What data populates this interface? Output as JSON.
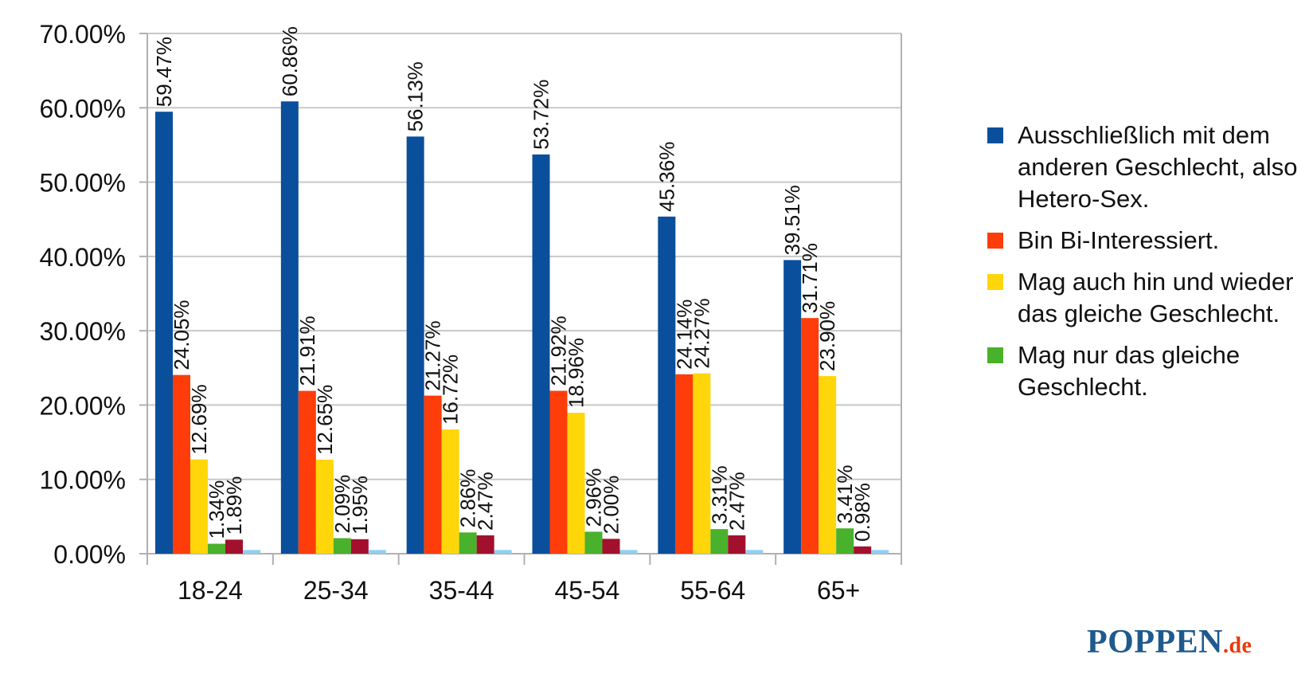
{
  "chart_data": {
    "type": "bar",
    "categories": [
      "18-24",
      "25-34",
      "35-44",
      "45-54",
      "55-64",
      "65+"
    ],
    "ylim": [
      0,
      70
    ],
    "yticks": [
      0,
      10,
      20,
      30,
      40,
      50,
      60,
      70
    ],
    "ytick_labels": [
      "0.00%",
      "10.00%",
      "20.00%",
      "30.00%",
      "40.00%",
      "50.00%",
      "60.00%",
      "70.00%"
    ],
    "grid": true,
    "legend_position": "right",
    "series": [
      {
        "name": "Ausschließlich mit dem anderen Geschlecht, also Hetero-Sex.",
        "color": "#0a4f9c",
        "values": [
          59.47,
          60.86,
          56.13,
          53.72,
          45.36,
          39.51
        ],
        "labels": [
          "59.47%",
          "60.86%",
          "56.13%",
          "53.72%",
          "45.36%",
          "39.51%"
        ]
      },
      {
        "name": "Bin Bi-Interessiert.",
        "color": "#ff3d0a",
        "values": [
          24.05,
          21.91,
          21.27,
          21.92,
          24.14,
          31.71
        ],
        "labels": [
          "24.05%",
          "21.91%",
          "21.27%",
          "21.92%",
          "24.14%",
          "31.71%"
        ]
      },
      {
        "name": "Mag auch hin und wieder das gleiche Geschlecht.",
        "color": "#ffd60a",
        "values": [
          12.69,
          12.65,
          16.72,
          18.96,
          24.27,
          23.9
        ],
        "labels": [
          "12.69%",
          "12.65%",
          "16.72%",
          "18.96%",
          "24.27%",
          "23.90%"
        ]
      },
      {
        "name": "Mag nur das gleiche Geschlecht.",
        "color": "#4ab12c",
        "values": [
          1.34,
          2.09,
          2.86,
          2.96,
          3.31,
          3.41
        ],
        "labels": [
          "1.34%",
          "2.09%",
          "2.86%",
          "2.96%",
          "3.31%",
          "3.41%"
        ]
      },
      {
        "name": "",
        "color": "#a3102e",
        "values": [
          1.89,
          1.95,
          2.47,
          2.0,
          2.47,
          0.98
        ],
        "labels": [
          "1.89%",
          "1.95%",
          "2.47%",
          "2.00%",
          "2.47%",
          "0.98%"
        ]
      },
      {
        "name": "",
        "color": "#8fd0f0",
        "values": [
          0.5,
          0.5,
          0.5,
          0.5,
          0.5,
          0.5
        ],
        "labels": [
          "",
          "",
          "",
          "",
          "",
          ""
        ]
      }
    ]
  },
  "legend": [
    {
      "text": "Ausschließlich mit dem anderen Geschlecht, also Hetero-Sex.",
      "color": "#0a4f9c"
    },
    {
      "text": "Bin Bi-Interessiert.",
      "color": "#ff3d0a"
    },
    {
      "text": "Mag auch hin und wieder das gleiche Geschlecht.",
      "color": "#ffd60a"
    },
    {
      "text": "Mag nur das gleiche Geschlecht.",
      "color": "#4ab12c"
    }
  ],
  "brand": {
    "name": "POPPEN",
    "tld": ".de"
  }
}
